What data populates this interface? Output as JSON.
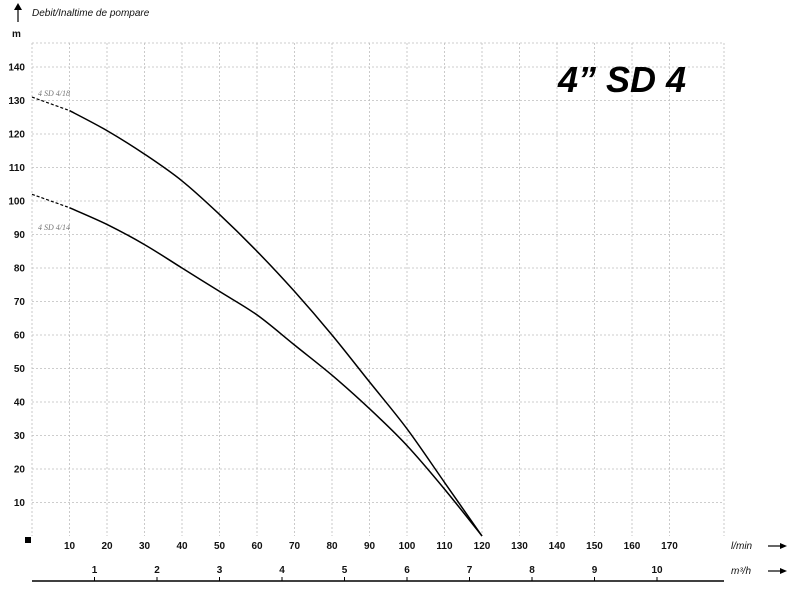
{
  "chart_data": {
    "type": "line",
    "title": "4” SD  4",
    "ylabel": "Debit/Inaltime de pompare",
    "yunit": "m",
    "xunit_primary": "l/min",
    "xunit_secondary": "m³/h",
    "ylim": [
      0,
      140
    ],
    "xlim": [
      0,
      180
    ],
    "yticks": [
      10,
      20,
      30,
      40,
      50,
      60,
      70,
      80,
      90,
      100,
      110,
      120,
      130,
      140
    ],
    "xticks_primary": [
      10,
      20,
      30,
      40,
      50,
      60,
      70,
      80,
      90,
      100,
      110,
      120,
      130,
      140,
      150,
      160,
      170
    ],
    "xticks_secondary": [
      1,
      2,
      3,
      4,
      5,
      6,
      7,
      8,
      9,
      10
    ],
    "grid": true,
    "series": [
      {
        "name": "4 SD 4/18",
        "x": [
          0,
          10,
          20,
          30,
          40,
          50,
          60,
          70,
          80,
          90,
          100,
          110,
          120
        ],
        "y": [
          131,
          127,
          121,
          114,
          106,
          96,
          85,
          73,
          60,
          46,
          32,
          16,
          0
        ]
      },
      {
        "name": "4 SD 4/14",
        "x": [
          0,
          10,
          20,
          30,
          40,
          50,
          60,
          70,
          80,
          90,
          100,
          110,
          120
        ],
        "y": [
          102,
          98,
          93,
          87,
          80,
          73,
          66,
          57,
          48,
          38,
          27,
          14,
          0
        ]
      }
    ]
  }
}
